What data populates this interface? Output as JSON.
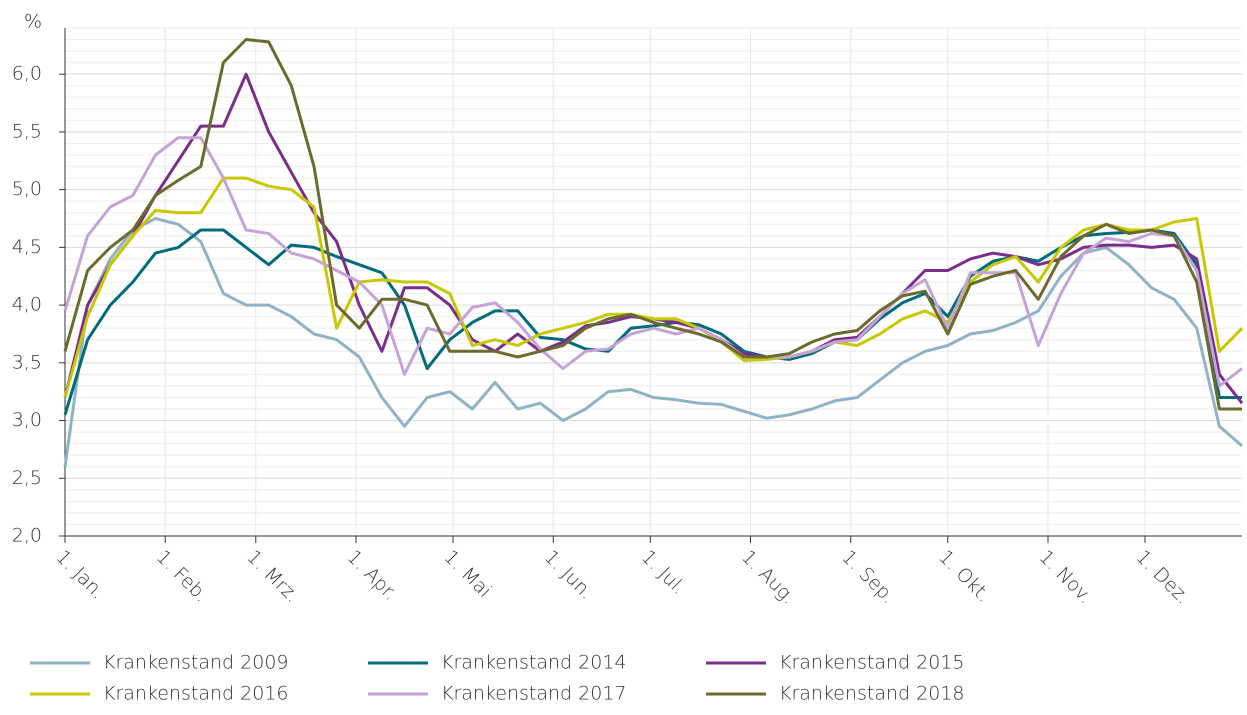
{
  "chart_data": {
    "type": "line",
    "y_label": "%",
    "x": [
      1,
      8,
      15,
      22,
      29,
      36,
      43,
      50,
      57,
      64,
      71,
      78,
      85,
      92,
      99,
      106,
      113,
      120,
      127,
      134,
      141,
      148,
      155,
      162,
      169,
      176,
      183,
      190,
      197,
      204,
      211,
      218,
      225,
      232,
      239,
      246,
      253,
      260,
      267,
      274,
      281,
      288,
      295,
      302,
      309,
      316,
      323,
      330,
      337,
      344,
      351,
      358,
      365
    ],
    "xlim": [
      1,
      365
    ],
    "xticks": [
      {
        "value": 1,
        "label": "1. Jan."
      },
      {
        "value": 32,
        "label": "1. Feb."
      },
      {
        "value": 60,
        "label": "1. Mrz."
      },
      {
        "value": 91,
        "label": "1. Apr."
      },
      {
        "value": 121,
        "label": "1. Mai"
      },
      {
        "value": 152,
        "label": "1. Jun."
      },
      {
        "value": 182,
        "label": "1. Jul."
      },
      {
        "value": 213,
        "label": "1. Aug."
      },
      {
        "value": 244,
        "label": "1. Sep."
      },
      {
        "value": 274,
        "label": "1. Okt."
      },
      {
        "value": 305,
        "label": "1. Nov."
      },
      {
        "value": 335,
        "label": "1. Dez."
      }
    ],
    "ylim": [
      2.0,
      6.4
    ],
    "yticks": [
      {
        "value": 2.0,
        "label": "2,0"
      },
      {
        "value": 2.5,
        "label": "2,5"
      },
      {
        "value": 3.0,
        "label": "3,0"
      },
      {
        "value": 3.5,
        "label": "3,5"
      },
      {
        "value": 4.0,
        "label": "4,0"
      },
      {
        "value": 4.5,
        "label": "4,5"
      },
      {
        "value": 5.0,
        "label": "5,0"
      },
      {
        "value": 5.5,
        "label": "5,5"
      },
      {
        "value": 6.0,
        "label": "6,0"
      }
    ],
    "grid": true,
    "series": [
      {
        "name": "Krankenstand 2009",
        "color": "#8fb3c4",
        "values": [
          2.6,
          4.0,
          4.4,
          4.65,
          4.75,
          4.7,
          4.55,
          4.1,
          4.0,
          4.0,
          3.9,
          3.75,
          3.7,
          3.55,
          3.2,
          2.95,
          3.2,
          3.25,
          3.1,
          3.33,
          3.1,
          3.15,
          3.0,
          3.1,
          3.25,
          3.27,
          3.2,
          3.18,
          3.15,
          3.14,
          3.08,
          3.02,
          3.05,
          3.1,
          3.17,
          3.2,
          3.35,
          3.5,
          3.6,
          3.65,
          3.75,
          3.78,
          3.85,
          3.95,
          4.25,
          4.45,
          4.5,
          4.35,
          4.15,
          4.05,
          3.8,
          2.95,
          2.78
        ]
      },
      {
        "name": "Krankenstand 2014",
        "color": "#006b7b",
        "values": [
          3.05,
          3.7,
          4.0,
          4.2,
          4.45,
          4.5,
          4.65,
          4.65,
          4.5,
          4.35,
          4.52,
          4.5,
          4.42,
          4.35,
          4.28,
          4.0,
          3.45,
          3.7,
          3.85,
          3.95,
          3.95,
          3.72,
          3.7,
          3.62,
          3.6,
          3.8,
          3.82,
          3.85,
          3.83,
          3.75,
          3.6,
          3.55,
          3.53,
          3.58,
          3.68,
          3.7,
          3.88,
          4.02,
          4.1,
          3.9,
          4.25,
          4.38,
          4.42,
          4.38,
          4.5,
          4.6,
          4.62,
          4.63,
          4.65,
          4.62,
          4.35,
          3.2,
          3.2
        ]
      },
      {
        "name": "Krankenstand 2015",
        "color": "#7b2d8b",
        "values": [
          3.2,
          4.0,
          4.35,
          4.6,
          4.95,
          5.25,
          5.55,
          5.55,
          6.0,
          5.5,
          5.15,
          4.8,
          4.55,
          4.0,
          3.6,
          4.15,
          4.15,
          4.0,
          3.7,
          3.6,
          3.75,
          3.6,
          3.68,
          3.82,
          3.85,
          3.9,
          3.88,
          3.85,
          3.8,
          3.7,
          3.58,
          3.55,
          3.55,
          3.6,
          3.7,
          3.72,
          3.9,
          4.1,
          4.3,
          4.3,
          4.4,
          4.45,
          4.42,
          4.35,
          4.4,
          4.5,
          4.52,
          4.52,
          4.5,
          4.52,
          4.4,
          3.4,
          3.15
        ]
      },
      {
        "name": "Krankenstand 2016",
        "color": "#c8c800",
        "values": [
          3.2,
          3.9,
          4.35,
          4.6,
          4.82,
          4.8,
          4.8,
          5.1,
          5.1,
          5.03,
          5.0,
          4.85,
          3.8,
          4.2,
          4.22,
          4.2,
          4.2,
          4.1,
          3.65,
          3.7,
          3.65,
          3.75,
          3.8,
          3.85,
          3.92,
          3.92,
          3.88,
          3.88,
          3.8,
          3.68,
          3.52,
          3.53,
          3.55,
          3.6,
          3.68,
          3.65,
          3.75,
          3.88,
          3.95,
          3.85,
          4.2,
          4.35,
          4.42,
          4.2,
          4.5,
          4.65,
          4.7,
          4.65,
          4.65,
          4.72,
          4.75,
          3.6,
          3.8
        ]
      },
      {
        "name": "Krankenstand 2017",
        "color": "#c5a3d6",
        "values": [
          3.95,
          4.6,
          4.85,
          4.95,
          5.3,
          5.45,
          5.45,
          5.1,
          4.65,
          4.62,
          4.45,
          4.4,
          4.3,
          4.2,
          4.0,
          3.4,
          3.8,
          3.75,
          3.98,
          4.02,
          3.85,
          3.62,
          3.45,
          3.6,
          3.62,
          3.75,
          3.8,
          3.75,
          3.8,
          3.7,
          3.55,
          3.55,
          3.55,
          3.6,
          3.68,
          3.7,
          3.9,
          4.1,
          4.22,
          3.8,
          4.28,
          4.28,
          4.28,
          3.65,
          4.1,
          4.45,
          4.58,
          4.55,
          4.62,
          4.6,
          4.3,
          3.3,
          3.45
        ]
      },
      {
        "name": "Krankenstand 2018",
        "color": "#6b6b2e",
        "values": [
          3.6,
          4.3,
          4.5,
          4.65,
          4.95,
          5.08,
          5.2,
          6.1,
          6.3,
          6.28,
          5.9,
          5.2,
          4.0,
          3.8,
          4.05,
          4.05,
          4.0,
          3.6,
          3.6,
          3.6,
          3.55,
          3.6,
          3.65,
          3.8,
          3.88,
          3.92,
          3.85,
          3.8,
          3.75,
          3.68,
          3.55,
          3.55,
          3.58,
          3.68,
          3.75,
          3.78,
          3.95,
          4.08,
          4.12,
          3.75,
          4.18,
          4.25,
          4.3,
          4.05,
          4.42,
          4.6,
          4.7,
          4.62,
          4.65,
          4.6,
          4.2,
          3.1,
          3.1
        ]
      }
    ]
  }
}
